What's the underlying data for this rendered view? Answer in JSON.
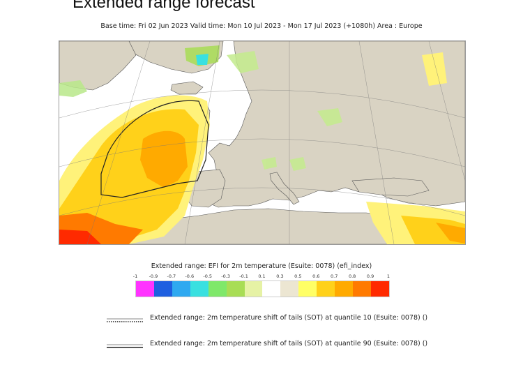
{
  "header": {
    "title": "Extended range forecast",
    "subtitle": "Base time: Fri 02 Jun 2023 Valid time: Mon 10 Jul 2023 - Mon 17 Jul 2023 (+1080h) Area : Europe"
  },
  "map": {
    "land_color": "#d9d3c3",
    "sea_color": "#ffffff",
    "region": "Europe"
  },
  "legend": {
    "title": "Extended range: EFI for 2m temperature (Esuite: 0078) (efi_index)",
    "tick_labels": [
      "-1",
      "-0.9",
      "-0.7",
      "-0.6",
      "-0.5",
      "-0.3",
      "-0.1",
      "0.1",
      "0.3",
      "0.5",
      "0.6",
      "0.7",
      "0.8",
      "0.9",
      "1"
    ],
    "colors": [
      "#ff33ff",
      "#1f5fe0",
      "#2fa9f0",
      "#39e0e0",
      "#7fe86a",
      "#a8dd55",
      "#e6f2a5",
      "#ffffff",
      "#ece6d2",
      "#ffff66",
      "#ffd11a",
      "#ffaa00",
      "#ff7a00",
      "#ff2a00"
    ]
  },
  "line_keys": [
    {
      "style": "dotted",
      "label": "Extended range: 2m temperature shift of tails (SOT) at quantile 10 (Esuite: 0078) ()"
    },
    {
      "style": "solid",
      "label": "Extended range: 2m temperature shift of tails (SOT) at quantile 90 (Esuite: 0078) ()"
    }
  ]
}
